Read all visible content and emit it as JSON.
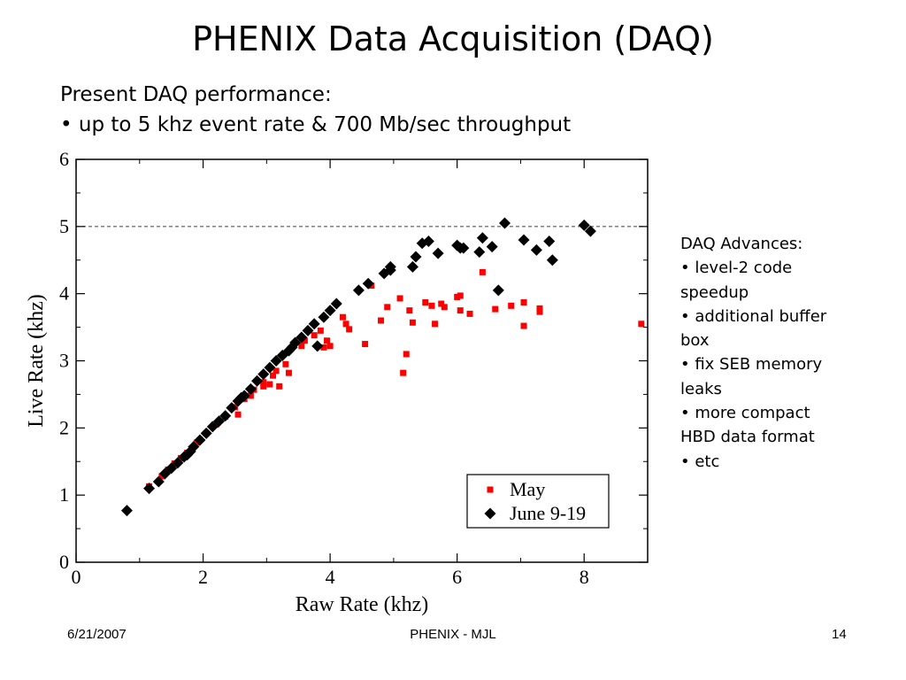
{
  "slide": {
    "title": "PHENIX Data Acquisition (DAQ)",
    "sub_line1": "Present DAQ performance:",
    "sub_line2": "• up to 5 khz event rate & 700 Mb/sec throughput"
  },
  "side_notes": {
    "heading": "DAQ Advances:",
    "lines": [
      "• level-2 code",
      "speedup",
      "• additional buffer",
      "box",
      "• fix SEB memory",
      "leaks",
      "• more compact",
      "HBD data format",
      "• etc"
    ]
  },
  "footer": {
    "date": "6/21/2007",
    "center": "PHENIX - MJL",
    "page": "14"
  },
  "colors": {
    "may": "#ff0000",
    "june": "#000000",
    "ref_line": "#555555"
  },
  "chart_data": {
    "type": "scatter",
    "xlabel": "Raw Rate (khz)",
    "ylabel": "Live Rate (khz)",
    "xlim": [
      0,
      9
    ],
    "ylim": [
      0,
      6
    ],
    "xticks": [
      0,
      2,
      4,
      6,
      8
    ],
    "yticks": [
      0,
      1,
      2,
      3,
      4,
      5,
      6
    ],
    "reference_line_y": 5,
    "legend_position": "bottom-right",
    "series": [
      {
        "name": "May",
        "marker": "square",
        "points": [
          [
            1.15,
            1.13
          ],
          [
            1.35,
            1.28
          ],
          [
            1.45,
            1.38
          ],
          [
            1.55,
            1.47
          ],
          [
            1.65,
            1.55
          ],
          [
            1.75,
            1.63
          ],
          [
            1.9,
            1.78
          ],
          [
            2.05,
            1.92
          ],
          [
            2.2,
            2.05
          ],
          [
            2.35,
            2.17
          ],
          [
            2.5,
            2.31
          ],
          [
            2.65,
            2.43
          ],
          [
            2.8,
            2.57
          ],
          [
            2.95,
            2.68
          ],
          [
            3.1,
            2.78
          ],
          [
            2.55,
            2.2
          ],
          [
            2.75,
            2.48
          ],
          [
            2.95,
            2.62
          ],
          [
            3.05,
            2.65
          ],
          [
            3.2,
            2.62
          ],
          [
            3.15,
            2.85
          ],
          [
            3.3,
            2.95
          ],
          [
            3.35,
            2.82
          ],
          [
            3.55,
            3.22
          ],
          [
            3.6,
            3.3
          ],
          [
            3.75,
            3.38
          ],
          [
            3.85,
            3.45
          ],
          [
            3.9,
            3.2
          ],
          [
            4.0,
            3.22
          ],
          [
            3.95,
            3.3
          ],
          [
            4.2,
            3.65
          ],
          [
            4.25,
            3.55
          ],
          [
            4.3,
            3.47
          ],
          [
            4.55,
            3.25
          ],
          [
            4.8,
            3.6
          ],
          [
            4.9,
            3.8
          ],
          [
            4.65,
            4.12
          ],
          [
            5.1,
            3.93
          ],
          [
            5.15,
            2.82
          ],
          [
            5.2,
            3.1
          ],
          [
            5.25,
            3.75
          ],
          [
            5.3,
            3.57
          ],
          [
            5.5,
            3.87
          ],
          [
            5.6,
            3.82
          ],
          [
            5.65,
            3.55
          ],
          [
            5.75,
            3.85
          ],
          [
            5.8,
            3.8
          ],
          [
            6.0,
            3.95
          ],
          [
            6.05,
            3.97
          ],
          [
            6.05,
            3.75
          ],
          [
            6.2,
            3.7
          ],
          [
            6.4,
            4.32
          ],
          [
            6.6,
            3.77
          ],
          [
            6.85,
            3.82
          ],
          [
            7.05,
            3.87
          ],
          [
            7.05,
            3.52
          ],
          [
            7.3,
            3.78
          ],
          [
            7.3,
            3.73
          ],
          [
            8.9,
            3.55
          ]
        ]
      },
      {
        "name": "June 9-19",
        "marker": "diamond",
        "points": [
          [
            0.8,
            0.77
          ],
          [
            1.15,
            1.1
          ],
          [
            1.3,
            1.2
          ],
          [
            1.4,
            1.32
          ],
          [
            1.5,
            1.4
          ],
          [
            1.6,
            1.48
          ],
          [
            1.7,
            1.57
          ],
          [
            1.75,
            1.6
          ],
          [
            1.85,
            1.72
          ],
          [
            1.95,
            1.82
          ],
          [
            2.05,
            1.92
          ],
          [
            2.15,
            2.02
          ],
          [
            2.25,
            2.1
          ],
          [
            2.35,
            2.18
          ],
          [
            2.45,
            2.3
          ],
          [
            2.55,
            2.4
          ],
          [
            2.65,
            2.48
          ],
          [
            2.75,
            2.58
          ],
          [
            2.85,
            2.7
          ],
          [
            2.95,
            2.8
          ],
          [
            3.05,
            2.9
          ],
          [
            3.15,
            3.0
          ],
          [
            3.25,
            3.08
          ],
          [
            3.35,
            3.15
          ],
          [
            3.45,
            3.27
          ],
          [
            3.55,
            3.35
          ],
          [
            3.65,
            3.45
          ],
          [
            3.75,
            3.55
          ],
          [
            3.8,
            3.22
          ],
          [
            3.9,
            3.65
          ],
          [
            4.0,
            3.75
          ],
          [
            4.1,
            3.85
          ],
          [
            4.45,
            4.05
          ],
          [
            4.6,
            4.15
          ],
          [
            4.85,
            4.3
          ],
          [
            4.95,
            4.4
          ],
          [
            4.95,
            4.35
          ],
          [
            5.3,
            4.4
          ],
          [
            5.35,
            4.55
          ],
          [
            5.45,
            4.75
          ],
          [
            5.55,
            4.78
          ],
          [
            5.7,
            4.6
          ],
          [
            6.0,
            4.72
          ],
          [
            6.05,
            4.68
          ],
          [
            6.1,
            4.68
          ],
          [
            6.35,
            4.62
          ],
          [
            6.4,
            4.83
          ],
          [
            6.55,
            4.7
          ],
          [
            6.65,
            4.05
          ],
          [
            6.75,
            5.05
          ],
          [
            7.05,
            4.8
          ],
          [
            7.25,
            4.65
          ],
          [
            7.45,
            4.78
          ],
          [
            7.5,
            4.5
          ],
          [
            8.0,
            5.02
          ],
          [
            8.1,
            4.93
          ],
          [
            1.8,
            1.65
          ],
          [
            2.6,
            2.45
          ],
          [
            3.4,
            3.2
          ]
        ]
      }
    ]
  }
}
